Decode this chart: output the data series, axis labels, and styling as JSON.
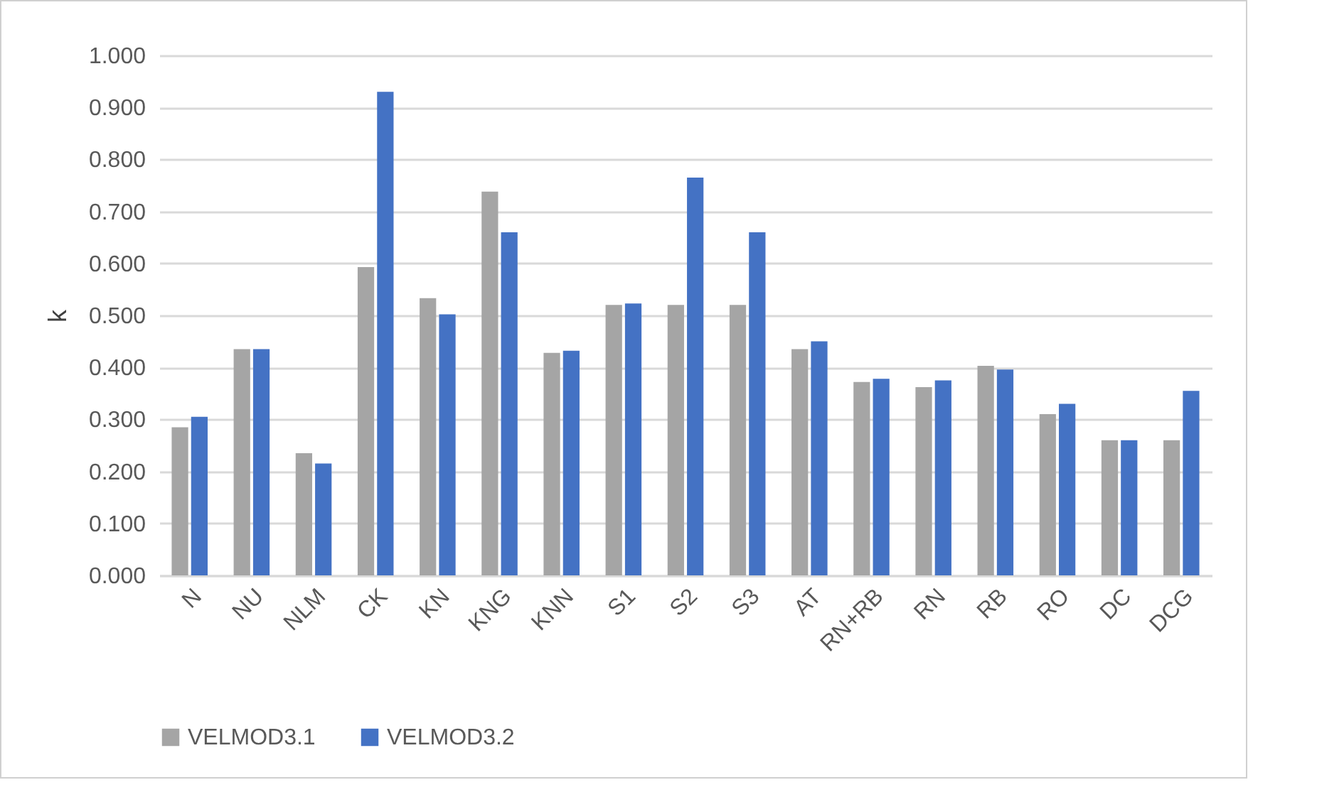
{
  "chart_data": {
    "type": "bar",
    "ylabel": "k",
    "categories": [
      "N",
      "NU",
      "NLM",
      "CK",
      "KN",
      "KNG",
      "KNN",
      "S1",
      "S2",
      "S3",
      "AT",
      "RN+RB",
      "RN",
      "RB",
      "RO",
      "DC",
      "DCG"
    ],
    "series": [
      {
        "name": "VELMOD3.1",
        "color": "#a5a5a5",
        "values": [
          0.285,
          0.435,
          0.235,
          0.593,
          0.533,
          0.738,
          0.428,
          0.52,
          0.52,
          0.52,
          0.435,
          0.372,
          0.362,
          0.403,
          0.31,
          0.26,
          0.26
        ]
      },
      {
        "name": "VELMOD3.2",
        "color": "#4472c4",
        "values": [
          0.305,
          0.435,
          0.215,
          0.93,
          0.502,
          0.66,
          0.432,
          0.523,
          0.765,
          0.66,
          0.45,
          0.378,
          0.375,
          0.396,
          0.33,
          0.26,
          0.355
        ]
      }
    ],
    "ylim": [
      0,
      1
    ],
    "yticks": [
      {
        "value": 0,
        "label": "0.000"
      },
      {
        "value": 0.1,
        "label": "0.100"
      },
      {
        "value": 0.2,
        "label": "0.200"
      },
      {
        "value": 0.3,
        "label": "0.300"
      },
      {
        "value": 0.4,
        "label": "0.400"
      },
      {
        "value": 0.5,
        "label": "0.500"
      },
      {
        "value": 0.6,
        "label": "0.600"
      },
      {
        "value": 0.7,
        "label": "0.700"
      },
      {
        "value": 0.8,
        "label": "0.800"
      },
      {
        "value": 0.9,
        "label": "0.900"
      },
      {
        "value": 1,
        "label": "1.000"
      }
    ],
    "grid": "y",
    "legend": "bottom"
  }
}
